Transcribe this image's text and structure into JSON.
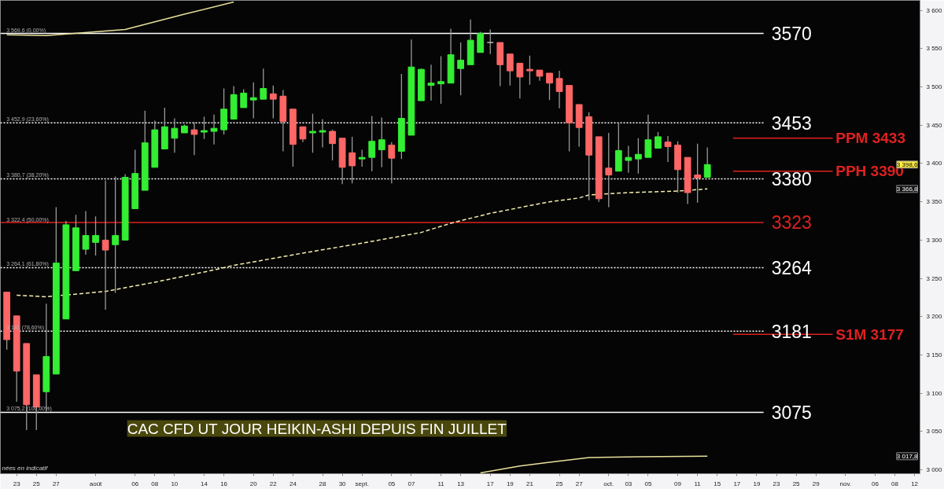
{
  "chart_data": {
    "type": "candlestick",
    "title": "CAC CFD UT JOUR HEIKIN-ASHI DEPUIS FIN JUILLET",
    "categories": [
      null,
      "23",
      null,
      "25",
      null,
      "27",
      null,
      null,
      null,
      "août",
      null,
      null,
      null,
      "06",
      null,
      "08",
      null,
      "10",
      null,
      null,
      "14",
      null,
      "16",
      null,
      null,
      "20",
      null,
      "22",
      null,
      "24",
      null,
      null,
      "28",
      null,
      "30",
      null,
      "sept.",
      null,
      null,
      "05",
      null,
      "07",
      null,
      null,
      "11",
      null,
      "13",
      null,
      null,
      "17",
      null,
      "19",
      null,
      "21",
      null,
      null,
      "25",
      null,
      "27",
      null,
      null,
      "oct.",
      null,
      "03",
      null,
      "05",
      null,
      null,
      "09",
      null,
      "11",
      null,
      "15",
      null,
      "17",
      null,
      "19",
      null,
      "23",
      null,
      "25",
      null,
      "29",
      null,
      null,
      "nov.",
      null,
      null,
      "06",
      null,
      "08",
      null,
      "12"
    ],
    "ohlc": [
      [
        3232,
        3232,
        3157,
        3170
      ],
      [
        3201,
        3201,
        3089,
        3129
      ],
      [
        3165,
        3165,
        3052,
        3085
      ],
      [
        3124,
        3124,
        3052,
        3082
      ],
      [
        3102,
        3217,
        3076,
        3148
      ],
      [
        3125,
        3343,
        3125,
        3270
      ],
      [
        3197,
        3325,
        3197,
        3320
      ],
      [
        3260,
        3333,
        3260,
        3316
      ],
      [
        3288,
        3338,
        3281,
        3306
      ],
      [
        3297,
        3331,
        3280,
        3306
      ],
      [
        3300,
        3378,
        3209,
        3287
      ],
      [
        3294,
        3383,
        3231,
        3306
      ],
      [
        3300,
        3386,
        3300,
        3382
      ],
      [
        3341,
        3418,
        3341,
        3387
      ],
      [
        3365,
        3469,
        3365,
        3427
      ],
      [
        3395,
        3456,
        3395,
        3444
      ],
      [
        3419,
        3473,
        3419,
        3448
      ],
      [
        3433,
        3459,
        3414,
        3446
      ],
      [
        3440,
        3451,
        3440,
        3449
      ],
      [
        3444,
        3454,
        3411,
        3438
      ],
      [
        3441,
        3461,
        3432,
        3443
      ],
      [
        3442,
        3464,
        3425,
        3446
      ],
      [
        3444,
        3498,
        3438,
        3471
      ],
      [
        3458,
        3501,
        3458,
        3490
      ],
      [
        3473,
        3497,
        3473,
        3492
      ],
      [
        3483,
        3506,
        3459,
        3486
      ],
      [
        3484,
        3524,
        3484,
        3498
      ],
      [
        3491,
        3502,
        3459,
        3484
      ],
      [
        3488,
        3496,
        3416,
        3455
      ],
      [
        3471,
        3471,
        3396,
        3425
      ],
      [
        3448,
        3448,
        3428,
        3432
      ],
      [
        3440,
        3465,
        3414,
        3442
      ],
      [
        3441,
        3458,
        3421,
        3443
      ],
      [
        3442,
        3444,
        3404,
        3426
      ],
      [
        3433,
        3433,
        3373,
        3395
      ],
      [
        3414,
        3435,
        3374,
        3397
      ],
      [
        3406,
        3418,
        3396,
        3408
      ],
      [
        3408,
        3462,
        3390,
        3429
      ],
      [
        3418,
        3460,
        3395,
        3431
      ],
      [
        3424,
        3428,
        3374,
        3407
      ],
      [
        3416,
        3517,
        3406,
        3459
      ],
      [
        3437,
        3562,
        3437,
        3526
      ],
      [
        3482,
        3524,
        3482,
        3523
      ],
      [
        3502,
        3529,
        3482,
        3505
      ],
      [
        3504,
        3540,
        3478,
        3507
      ],
      [
        3505,
        3576,
        3505,
        3542
      ],
      [
        3524,
        3558,
        3489,
        3535
      ],
      [
        3529,
        3588,
        3529,
        3561
      ],
      [
        3545,
        3572,
        3545,
        3570
      ],
      [
        3558,
        3575,
        3543,
        3558
      ],
      [
        3558,
        3558,
        3501,
        3529
      ],
      [
        3543,
        3543,
        3502,
        3521
      ],
      [
        3531,
        3531,
        3485,
        3513
      ],
      [
        3523,
        3541,
        3503,
        3521
      ],
      [
        3522,
        3522,
        3508,
        3514
      ],
      [
        3518,
        3518,
        3483,
        3505
      ],
      [
        3511,
        3521,
        3472,
        3494
      ],
      [
        3502,
        3502,
        3416,
        3453
      ],
      [
        3477,
        3477,
        3422,
        3447
      ],
      [
        3461,
        3467,
        3352,
        3411
      ],
      [
        3435,
        3435,
        3350,
        3354
      ],
      [
        3394,
        3440,
        3343,
        3385
      ],
      [
        3390,
        3453,
        3390,
        3417
      ],
      [
        3404,
        3423,
        3388,
        3408
      ],
      [
        3406,
        3433,
        3387,
        3412
      ],
      [
        3408,
        3464,
        3408,
        3431
      ],
      [
        3420,
        3441,
        3420,
        3435
      ],
      [
        3428,
        3436,
        3402,
        3422
      ],
      [
        3424,
        3429,
        3362,
        3392
      ],
      [
        3408,
        3408,
        3347,
        3362
      ],
      [
        3385,
        3426,
        3349,
        3381
      ],
      [
        3382,
        3421,
        3382,
        3398.6
      ],
      null,
      null,
      null,
      null,
      null,
      null,
      null,
      null,
      null,
      null,
      null,
      null,
      null,
      null,
      null,
      null,
      null,
      null,
      null,
      null,
      null
    ],
    "colors": [
      "#ff6666",
      "#ff6666",
      "#ff6666",
      "#ff6666",
      "#33ee33",
      "#33ee33",
      "#33ee33",
      "#33ee33",
      "#33ee33",
      "#33ee33",
      "#ff6666",
      "#33ee33",
      "#33ee33",
      "#33ee33",
      "#33ee33",
      "#33ee33",
      "#33ee33",
      "#33ee33",
      "#33ee33",
      "#ff6666",
      "#33ee33",
      "#33ee33",
      "#33ee33",
      "#33ee33",
      "#33ee33",
      "#33ee33",
      "#33ee33",
      "#ff6666",
      "#ff6666",
      "#ff6666",
      "#ff6666",
      "#33ee33",
      "#33ee33",
      "#ff6666",
      "#ff6666",
      "#ff6666",
      "#33ee33",
      "#33ee33",
      "#33ee33",
      "#ff6666",
      "#33ee33",
      "#33ee33",
      "#33ee33",
      "#33ee33",
      "#33ee33",
      "#33ee33",
      "#33ee33",
      "#33ee33",
      "#33ee33",
      "#bbbbbb",
      "#ff6666",
      "#ff6666",
      "#ff6666",
      "#ff6666",
      "#ff6666",
      "#ff6666",
      "#ff6666",
      "#ff6666",
      "#ff6666",
      "#ff6666",
      "#ff6666",
      "#ff6666",
      "#33ee33",
      "#33ee33",
      "#33ee33",
      "#33ee33",
      "#33ee33",
      "#ff6666",
      "#ff6666",
      "#ff6666",
      "#ff6666",
      "#33ee33",
      null,
      null,
      null,
      null,
      null,
      null,
      null,
      null,
      null,
      null,
      null,
      null,
      null,
      null,
      null,
      null,
      null,
      null,
      null,
      null,
      null
    ],
    "series": [
      {
        "type": "line",
        "color": "#f5efb0",
        "line_style": "dashed",
        "values": [
          null,
          3228,
          null,
          null,
          3226,
          null,
          null,
          null,
          null,
          null,
          3233,
          null,
          null,
          null,
          null,
          3245,
          null,
          null,
          null,
          null,
          null,
          3261,
          null,
          3267,
          null,
          null,
          null,
          null,
          null,
          null,
          3283,
          null,
          null,
          null,
          null,
          null,
          3296,
          null,
          null,
          null,
          null,
          null,
          3310,
          null,
          null,
          3322,
          null,
          null,
          null,
          3335,
          null,
          null,
          null,
          null,
          null,
          3350,
          null,
          null,
          3355,
          3359,
          null,
          null,
          null,
          3362,
          null,
          null,
          null,
          null,
          3364,
          null,
          null,
          3366.8,
          null,
          null,
          null,
          null,
          null,
          null,
          null,
          null,
          null,
          null,
          null,
          null,
          null,
          null,
          null,
          null,
          null,
          null,
          null,
          null,
          null
        ]
      },
      {
        "type": "line",
        "color": "#e8e09a",
        "line_style": "solid",
        "values": [
          3568,
          null,
          null,
          null,
          3567,
          null,
          null,
          null,
          null,
          null,
          null,
          null,
          3575,
          null,
          null,
          null,
          null,
          null,
          3595,
          null,
          null,
          null,
          null,
          3611,
          null,
          null,
          null,
          null,
          null,
          null,
          null,
          null,
          null,
          null,
          null,
          null,
          null,
          null,
          null,
          null,
          null,
          null,
          null,
          null,
          null,
          null,
          null,
          null,
          null,
          null,
          null,
          null,
          null,
          null,
          null,
          null,
          null,
          null,
          null,
          null,
          null,
          null,
          null,
          null,
          null,
          null,
          null,
          null,
          null,
          null,
          null,
          null,
          null,
          null,
          null,
          null,
          null,
          null,
          null,
          null,
          null,
          null,
          null,
          null,
          null,
          null,
          null,
          null,
          null,
          null,
          null,
          null,
          null
        ]
      },
      {
        "type": "line",
        "color": "#e8e09a",
        "line_style": "solid",
        "values": [
          null,
          null,
          null,
          null,
          null,
          null,
          null,
          null,
          null,
          null,
          null,
          null,
          null,
          null,
          null,
          null,
          null,
          null,
          null,
          null,
          null,
          null,
          null,
          null,
          null,
          null,
          null,
          null,
          null,
          null,
          null,
          null,
          null,
          null,
          null,
          null,
          null,
          null,
          null,
          null,
          null,
          null,
          null,
          null,
          null,
          null,
          null,
          null,
          2996,
          null,
          null,
          null,
          3005,
          null,
          null,
          3010,
          null,
          null,
          null,
          3016,
          null,
          null,
          null,
          null,
          3017,
          null,
          null,
          null,
          null,
          null,
          null,
          3017.8,
          null,
          null,
          null,
          null,
          null,
          null,
          null,
          null,
          null,
          null,
          null,
          null,
          null,
          null,
          null,
          null,
          null,
          null,
          null,
          null,
          null
        ]
      }
    ],
    "ref_lines": [
      {
        "axis": "y",
        "value": 3570,
        "label": "3570",
        "color": "#ffffff",
        "line_style": "solid"
      },
      {
        "axis": "y",
        "value": 3453,
        "label": "3453",
        "color": "#ffffff",
        "line_style": "dotted"
      },
      {
        "axis": "y",
        "value": 3380,
        "label": "3380",
        "color": "#ffffff",
        "line_style": "dotted"
      },
      {
        "axis": "y",
        "value": 3323,
        "label": "3323",
        "color": "#e02020",
        "line_style": "solid"
      },
      {
        "axis": "y",
        "value": 3264,
        "label": "3264",
        "color": "#ffffff",
        "line_style": "dotted"
      },
      {
        "axis": "y",
        "value": 3181,
        "label": "3181",
        "color": "#ffffff",
        "line_style": "dotted"
      },
      {
        "axis": "y",
        "value": 3075,
        "label": "3075",
        "color": "#ffffff",
        "line_style": "solid"
      },
      {
        "axis": "y",
        "value": 3433,
        "label": "PPM 3433",
        "color": "#e02020",
        "line_style": "solid"
      },
      {
        "axis": "y",
        "value": 3390,
        "label": "PPH 3390",
        "color": "#e02020",
        "line_style": "solid"
      },
      {
        "axis": "y",
        "value": 3177,
        "label": "S1M 3177",
        "color": "#e02020",
        "line_style": "solid"
      }
    ],
    "annotations": [
      {
        "text": "3 569,6 (0,00%)",
        "x": "23",
        "y": 3569.6
      },
      {
        "text": "3 452,9 (23,60%)",
        "x": "23",
        "y": 3452.9
      },
      {
        "text": "3 380,7 (38,20%)",
        "x": "23",
        "y": 3380.7
      },
      {
        "text": "3 322,4 (50,00%)",
        "x": "23",
        "y": 3322.4
      },
      {
        "text": "3 264,1 (61,80%)",
        "x": "23",
        "y": 3264.1
      },
      {
        "text": "3 181 (78,60%)",
        "x": "23",
        "y": 3181
      },
      {
        "text": "3 075,2 (100,00%)",
        "x": "23",
        "y": 3075.2
      },
      {
        "text": "3 398,6",
        "y": 3398.6
      },
      {
        "text": "3 366,8",
        "y": 3366.8
      },
      {
        "text": "3 017,8",
        "y": 3017.8
      },
      "nées en indicatif"
    ],
    "ylim": [
      2995,
      3613
    ],
    "yticks": [
      {
        "value": 3000,
        "label": "3 000"
      },
      {
        "value": 3050,
        "label": "3 050"
      },
      {
        "value": 3100,
        "label": "3 100"
      },
      {
        "value": 3150,
        "label": "3 150"
      },
      {
        "value": 3200,
        "label": "3 200"
      },
      {
        "value": 3250,
        "label": "3 250"
      },
      {
        "value": 3300,
        "label": "3 300"
      },
      {
        "value": 3350,
        "label": "3 350"
      },
      {
        "value": 3400,
        "label": "3 400"
      },
      {
        "value": 3450,
        "label": "3 450"
      },
      {
        "value": 3500,
        "label": "3 500"
      },
      {
        "value": 3550,
        "label": "3 550"
      },
      {
        "value": 3600,
        "label": "3 600"
      }
    ]
  }
}
